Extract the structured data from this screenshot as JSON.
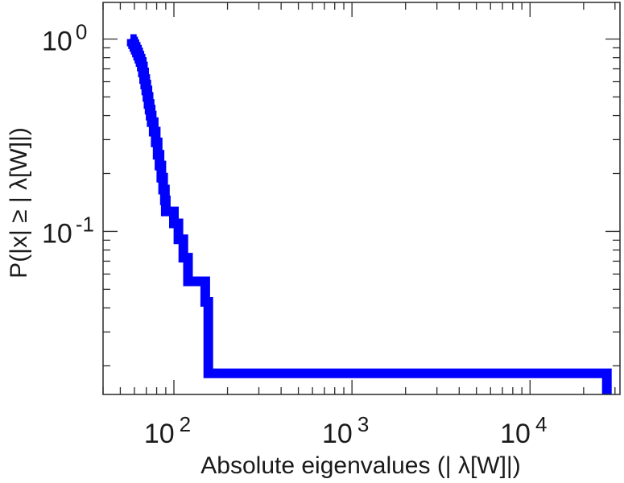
{
  "chart_data": {
    "type": "line",
    "title": "",
    "xlabel": "Absolute eigenvalues (|     λ[W]|)",
    "ylabel": "P(|x|  ≥ | λ[W]|)",
    "x_scale": "log",
    "y_scale": "log",
    "xlim": [
      40,
      32000
    ],
    "ylim": [
      0.0142,
      1.55
    ],
    "x_ticks": [
      {
        "value": 100,
        "base": "10",
        "exp": "2"
      },
      {
        "value": 1000,
        "base": "10",
        "exp": "3"
      },
      {
        "value": 10000,
        "base": "10",
        "exp": "4"
      }
    ],
    "y_ticks": [
      {
        "value": 1,
        "base": "10",
        "exp": "0"
      },
      {
        "value": 0.1,
        "base": "10",
        "exp": "-1"
      }
    ],
    "grid": false,
    "legend": "none",
    "series": [
      {
        "color": "#0000ff",
        "step": true,
        "points": [
          [
            57,
            1.0
          ],
          [
            58,
            0.97
          ],
          [
            59,
            0.94
          ],
          [
            60,
            0.91
          ],
          [
            61,
            0.88
          ],
          [
            62,
            0.85
          ],
          [
            63,
            0.82
          ],
          [
            64,
            0.79
          ],
          [
            65,
            0.76
          ],
          [
            66,
            0.72
          ],
          [
            67,
            0.67
          ],
          [
            68,
            0.62
          ],
          [
            69,
            0.58
          ],
          [
            70,
            0.54
          ],
          [
            71,
            0.5
          ],
          [
            72,
            0.46
          ],
          [
            73,
            0.43
          ],
          [
            74,
            0.4
          ],
          [
            75,
            0.37
          ],
          [
            77,
            0.33
          ],
          [
            79,
            0.29
          ],
          [
            81,
            0.25
          ],
          [
            83,
            0.22
          ],
          [
            85,
            0.19
          ],
          [
            87,
            0.165
          ],
          [
            89,
            0.145
          ],
          [
            90,
            0.127
          ],
          [
            100,
            0.11
          ],
          [
            106,
            0.091
          ],
          [
            113,
            0.073
          ],
          [
            120,
            0.055
          ],
          [
            150,
            0.043
          ],
          [
            156,
            0.0183
          ],
          [
            27000,
            0.0142
          ]
        ]
      }
    ]
  }
}
